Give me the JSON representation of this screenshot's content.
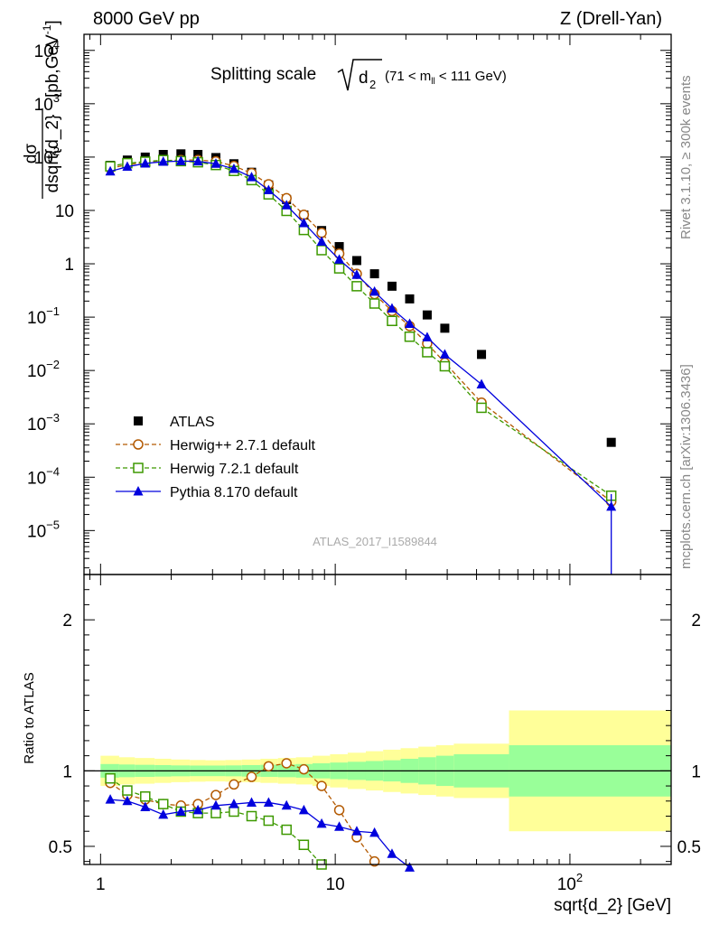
{
  "header": {
    "left": "8000 GeV pp",
    "right": "Z (Drell-Yan)"
  },
  "side_labels": {
    "top": "Rivet 3.1.10, ≥ 300k events",
    "bottom": "mcplots.cern.ch [arXiv:1306.3436]"
  },
  "plot_title": {
    "main": "Splitting scale",
    "symbol": "d",
    "subscript": "2",
    "range_pre": "(71 < m",
    "range_sub": "ll",
    "range_post": " < 111 GeV)"
  },
  "watermark": "ATLAS_2017_I1589844",
  "colors": {
    "atlas": "#000000",
    "herwigpp": "#b35900",
    "herwig7": "#3d9900",
    "pythia": "#0000dd",
    "band_inner": "#99ff99",
    "band_outer": "#ffff99"
  },
  "chart_data": [
    {
      "type": "scatter",
      "xscale": "log",
      "yscale": "log",
      "xlim": [
        0.85,
        270
      ],
      "ylim": [
        1.5e-06,
        20000.0
      ],
      "ylabel_num": "dσ",
      "ylabel_den": "dsqrt{d_2}",
      "ylabel_unit": "[pb,GeV",
      "ylabel_unit_sup": "-1",
      "ylabel_unit_close": "]",
      "ytick_labels": [
        {
          "value": 10000.0,
          "base": "10",
          "exp": "4"
        },
        {
          "value": 1000.0,
          "base": "10",
          "exp": "3"
        },
        {
          "value": 100.0,
          "base": "10",
          "exp": "2"
        },
        {
          "value": 10,
          "base": "10",
          "exp": ""
        },
        {
          "value": 1,
          "base": "1",
          "exp": ""
        },
        {
          "value": 0.1,
          "base": "10",
          "exp": "−1"
        },
        {
          "value": 0.01,
          "base": "10",
          "exp": "−2"
        },
        {
          "value": 0.001,
          "base": "10",
          "exp": "−3"
        },
        {
          "value": 0.0001,
          "base": "10",
          "exp": "−4"
        },
        {
          "value": 1e-05,
          "base": "10",
          "exp": "−5"
        }
      ],
      "legend_position": "bottom-left",
      "series": [
        {
          "name": "ATLAS",
          "style": "square",
          "x": [
            1.1,
            1.3,
            1.55,
            1.85,
            2.2,
            2.6,
            3.1,
            3.7,
            4.4,
            5.2,
            6.2,
            7.35,
            8.75,
            10.4,
            12.35,
            14.7,
            17.45,
            20.75,
            24.65,
            29.3,
            42.0,
            150.0
          ],
          "y": [
            70,
            88,
            100,
            112,
            115,
            112,
            98,
            75,
            52,
            30,
            16,
            8.2,
            4.2,
            2.1,
            1.15,
            0.65,
            0.38,
            0.22,
            0.11,
            0.062,
            0.02,
            0.00045
          ]
        },
        {
          "name": "Herwig++ 2.7.1 default",
          "style": "circle-dashed",
          "x": [
            1.1,
            1.3,
            1.55,
            1.85,
            2.2,
            2.6,
            3.1,
            3.7,
            4.4,
            5.2,
            6.2,
            7.35,
            8.75,
            10.4,
            12.35,
            14.7,
            17.45,
            20.75,
            24.65,
            29.3,
            42.0,
            150.0
          ],
          "y": [
            62,
            72,
            80,
            86,
            88,
            88,
            83,
            68,
            50,
            31,
            17,
            8.3,
            3.8,
            1.55,
            0.65,
            0.27,
            0.13,
            0.068,
            0.032,
            0.014,
            0.0025,
            3.5e-05
          ]
        },
        {
          "name": "Herwig 7.2.1 default",
          "style": "square-open-dashed",
          "x": [
            1.1,
            1.3,
            1.55,
            1.85,
            2.2,
            2.6,
            3.1,
            3.7,
            4.4,
            5.2,
            6.2,
            7.35,
            8.75,
            10.4,
            12.35,
            14.7,
            17.45,
            20.75,
            24.65,
            29.3,
            42.0,
            150.0
          ],
          "y": [
            67,
            77,
            82,
            88,
            84,
            80,
            71,
            55,
            37,
            20,
            9.8,
            4.3,
            1.8,
            0.82,
            0.38,
            0.18,
            0.085,
            0.043,
            0.022,
            0.012,
            0.002,
            4.5e-05
          ]
        },
        {
          "name": "Pythia 8.170 default",
          "style": "triangle-solid",
          "x": [
            1.1,
            1.3,
            1.55,
            1.85,
            2.2,
            2.6,
            3.1,
            3.7,
            4.4,
            5.2,
            6.2,
            7.35,
            8.75,
            10.4,
            12.35,
            14.7,
            17.45,
            20.75,
            24.65,
            29.3,
            42.0,
            150.0
          ],
          "y": [
            54,
            66,
            76,
            82,
            84,
            83,
            75,
            60,
            42,
            24,
            12.5,
            5.8,
            2.6,
            1.2,
            0.62,
            0.3,
            0.145,
            0.075,
            0.042,
            0.02,
            0.0055,
            2.8e-05
          ]
        }
      ]
    },
    {
      "type": "line",
      "xscale": "log",
      "xlim": [
        0.85,
        270
      ],
      "ylim": [
        0.38,
        2.3
      ],
      "ylabel": "Ratio to ATLAS",
      "xlabel": "sqrt{d_2} [GeV]",
      "xtick_labels": [
        {
          "value": 1,
          "base": "1",
          "exp": ""
        },
        {
          "value": 10,
          "base": "10",
          "exp": ""
        },
        {
          "value": 100,
          "base": "10",
          "exp": "2"
        }
      ],
      "ytick_labels": [
        {
          "value": 2,
          "label": "2"
        },
        {
          "value": 1,
          "label": "1"
        },
        {
          "value": 0.5,
          "label": "0.5"
        }
      ],
      "band_edges": [
        1.0,
        1.2,
        1.4,
        1.7,
        2.0,
        2.4,
        2.8,
        3.4,
        4.0,
        4.8,
        5.7,
        6.8,
        8.0,
        9.5,
        11.3,
        13.5,
        16.0,
        19.0,
        22.6,
        26.9,
        32.0,
        55.0,
        270.0
      ],
      "band_inner_half": [
        0.045,
        0.042,
        0.04,
        0.038,
        0.036,
        0.035,
        0.035,
        0.036,
        0.038,
        0.04,
        0.042,
        0.045,
        0.05,
        0.055,
        0.06,
        0.065,
        0.07,
        0.08,
        0.09,
        0.1,
        0.11,
        0.17
      ],
      "band_outer_half": [
        0.1,
        0.09,
        0.085,
        0.08,
        0.075,
        0.072,
        0.07,
        0.072,
        0.075,
        0.08,
        0.085,
        0.09,
        0.1,
        0.11,
        0.12,
        0.13,
        0.14,
        0.15,
        0.16,
        0.17,
        0.18,
        0.4
      ],
      "series": [
        {
          "name": "Herwig++ 2.7.1 default",
          "x": [
            1.1,
            1.3,
            1.55,
            1.85,
            2.2,
            2.6,
            3.1,
            3.7,
            4.4,
            5.2,
            6.2,
            7.35,
            8.75,
            10.4,
            12.35,
            14.7
          ],
          "y": [
            0.92,
            0.84,
            0.81,
            0.78,
            0.77,
            0.78,
            0.84,
            0.91,
            0.96,
            1.03,
            1.05,
            1.01,
            0.9,
            0.74,
            0.56,
            0.4
          ]
        },
        {
          "name": "Herwig 7.2.1 default",
          "x": [
            1.1,
            1.3,
            1.55,
            1.85,
            2.2,
            2.6,
            3.1,
            3.7,
            4.4,
            5.2,
            6.2,
            7.35,
            8.75
          ],
          "y": [
            0.95,
            0.87,
            0.83,
            0.78,
            0.73,
            0.72,
            0.72,
            0.73,
            0.7,
            0.67,
            0.61,
            0.51,
            0.38
          ]
        },
        {
          "name": "Pythia 8.170 default",
          "x": [
            1.1,
            1.3,
            1.55,
            1.85,
            2.2,
            2.6,
            3.1,
            3.7,
            4.4,
            5.2,
            6.2,
            7.35,
            8.75,
            10.4,
            12.35,
            14.7,
            17.45,
            20.75
          ],
          "y": [
            0.81,
            0.8,
            0.76,
            0.71,
            0.73,
            0.74,
            0.77,
            0.78,
            0.79,
            0.79,
            0.77,
            0.74,
            0.65,
            0.63,
            0.6,
            0.59,
            0.45,
            0.36
          ]
        }
      ]
    }
  ]
}
